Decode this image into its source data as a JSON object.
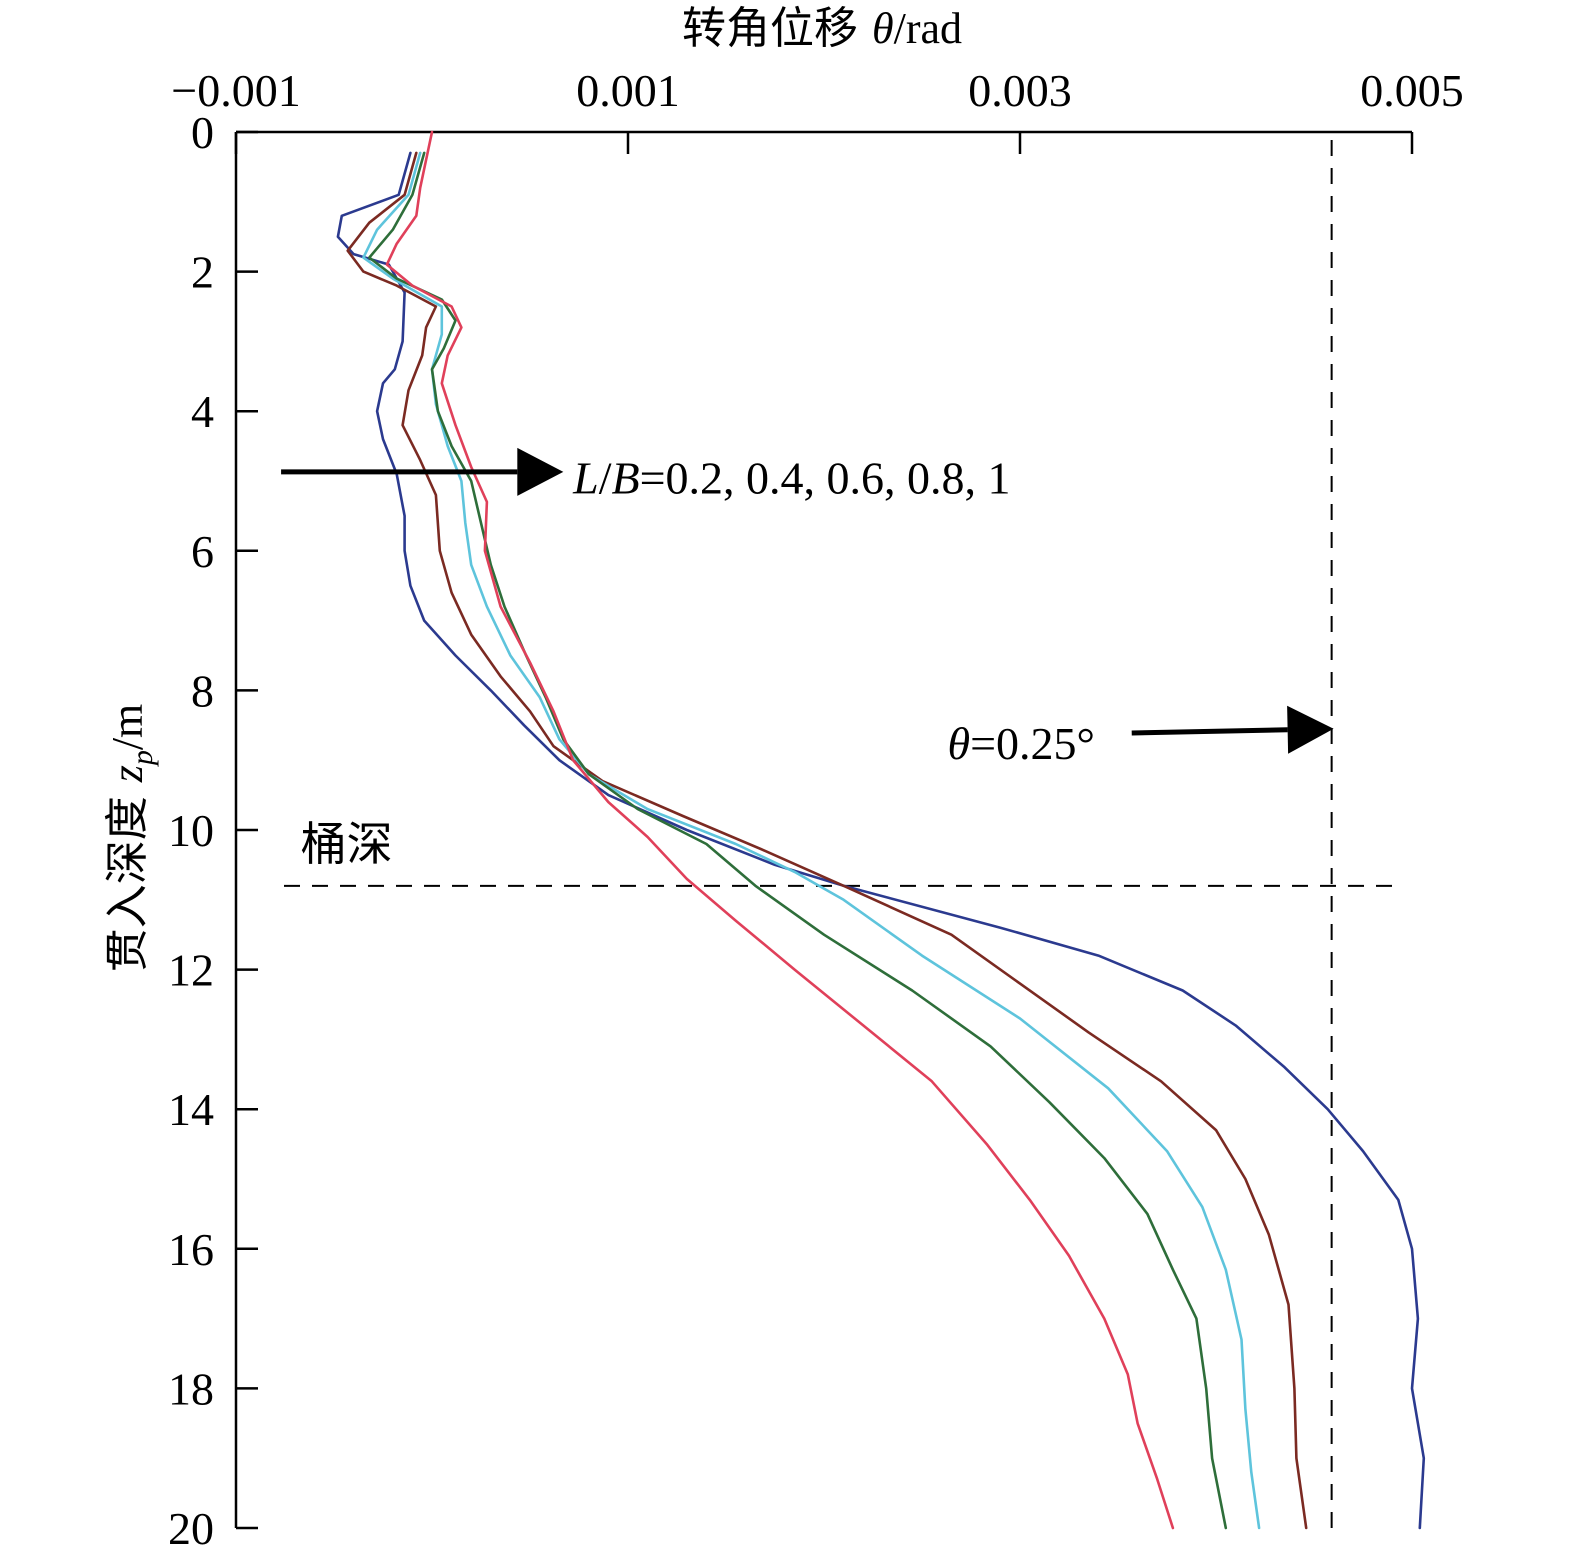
{
  "chart_data": {
    "type": "line",
    "xlabel_prefix": "转角位移 ",
    "xlabel_symbol": "θ",
    "xlabel_unit": "/rad",
    "ylabel_prefix": "贯入深度 ",
    "ylabel_symbol": "z",
    "ylabel_sub": "p",
    "ylabel_unit": "/m",
    "xlim": [
      -0.001,
      0.005
    ],
    "ylim": [
      0,
      20
    ],
    "y_inverted": true,
    "x_axis_position": "top",
    "x_ticks": [
      -0.001,
      0.001,
      0.003,
      0.005
    ],
    "x_tick_labels": [
      "−0.001",
      "0.001",
      "0.003",
      "0.005"
    ],
    "y_ticks": [
      0,
      2,
      4,
      6,
      8,
      10,
      12,
      14,
      16,
      18,
      20
    ],
    "y_tick_labels": [
      "0",
      "2",
      "4",
      "6",
      "8",
      "10",
      "12",
      "14",
      "16",
      "18",
      "20"
    ],
    "grid": false,
    "annotations": {
      "lb_italic_L": "L",
      "lb_slash": "/",
      "lb_italic_B": "B",
      "lb_values": "=0.2, 0.4, 0.6, 0.8, 1",
      "lb_arrow": {
        "from": [
          -0.00077,
          4.87
        ],
        "to": [
          0.00067,
          4.87
        ]
      },
      "lb_label_pos": [
        0.00072,
        4.95
      ],
      "theta_symbol": "θ",
      "theta_value": "=0.25°",
      "theta_arrow": {
        "from": [
          0.00357,
          8.61
        ],
        "to": [
          0.0046,
          8.55
        ]
      },
      "theta_label_pos": [
        0.00263,
        8.75
      ],
      "bucket_label": "桶深",
      "bucket_label_pos": [
        -0.00067,
        10.2
      ]
    },
    "reference_lines": [
      {
        "type": "horizontal",
        "y": 10.8,
        "style": "dashed"
      },
      {
        "type": "vertical",
        "x": 0.00459,
        "style": "dashed"
      }
    ],
    "series": [
      {
        "color": "#2b3a8f",
        "points": [
          [
            -0.00011,
            0.3
          ],
          [
            -0.00017,
            0.9
          ],
          [
            -0.00046,
            1.2
          ],
          [
            -0.00048,
            1.5
          ],
          [
            -0.0004,
            1.75
          ],
          [
            -0.00022,
            1.9
          ],
          [
            -0.00014,
            2.3
          ],
          [
            -0.00015,
            3.0
          ],
          [
            -0.00019,
            3.4
          ],
          [
            -0.00025,
            3.6
          ],
          [
            -0.00028,
            4.0
          ],
          [
            -0.00025,
            4.4
          ],
          [
            -0.00018,
            4.9
          ],
          [
            -0.00014,
            5.5
          ],
          [
            -0.00014,
            6.0
          ],
          [
            -0.00011,
            6.5
          ],
          [
            -4e-05,
            7.0
          ],
          [
            0.00012,
            7.5
          ],
          [
            0.0003,
            8.0
          ],
          [
            0.00047,
            8.5
          ],
          [
            0.00065,
            9.0
          ],
          [
            0.0009,
            9.5
          ],
          [
            0.0013,
            10.0
          ],
          [
            0.00175,
            10.5
          ],
          [
            0.0021,
            10.8
          ],
          [
            0.0029,
            11.4
          ],
          [
            0.0034,
            11.8
          ],
          [
            0.00383,
            12.3
          ],
          [
            0.0041,
            12.8
          ],
          [
            0.00435,
            13.4
          ],
          [
            0.00457,
            14.0
          ],
          [
            0.00475,
            14.6
          ],
          [
            0.00493,
            15.3
          ],
          [
            0.005,
            16.0
          ],
          [
            0.00503,
            17.0
          ],
          [
            0.005,
            18.0
          ],
          [
            0.00506,
            19.0
          ],
          [
            0.00504,
            20.0
          ]
        ]
      },
      {
        "color": "#7b2a22",
        "points": [
          [
            -8e-05,
            0.3
          ],
          [
            -0.00014,
            0.9
          ],
          [
            -0.00032,
            1.3
          ],
          [
            -0.00043,
            1.7
          ],
          [
            -0.00035,
            2.0
          ],
          [
            -0.00018,
            2.2
          ],
          [
            2e-05,
            2.5
          ],
          [
            -3e-05,
            2.8
          ],
          [
            -5e-05,
            3.2
          ],
          [
            -0.00012,
            3.7
          ],
          [
            -0.00015,
            4.2
          ],
          [
            -6e-05,
            4.7
          ],
          [
            2e-05,
            5.2
          ],
          [
            4e-05,
            6.0
          ],
          [
            0.0001,
            6.6
          ],
          [
            0.0002,
            7.2
          ],
          [
            0.00035,
            7.8
          ],
          [
            0.0005,
            8.3
          ],
          [
            0.00062,
            8.8
          ],
          [
            0.00087,
            9.3
          ],
          [
            0.00128,
            9.8
          ],
          [
            0.0017,
            10.3
          ],
          [
            0.0021,
            10.8
          ],
          [
            0.00265,
            11.5
          ],
          [
            0.003,
            12.2
          ],
          [
            0.00335,
            12.9
          ],
          [
            0.00372,
            13.6
          ],
          [
            0.004,
            14.3
          ],
          [
            0.00415,
            15.0
          ],
          [
            0.00427,
            15.8
          ],
          [
            0.00437,
            16.8
          ],
          [
            0.0044,
            18.0
          ],
          [
            0.00441,
            19.0
          ],
          [
            0.00446,
            20.0
          ]
        ]
      },
      {
        "color": "#5ec4dc",
        "points": [
          [
            -6e-05,
            0.3
          ],
          [
            -0.00012,
            0.9
          ],
          [
            -0.00028,
            1.4
          ],
          [
            -0.00035,
            1.8
          ],
          [
            -0.0002,
            2.1
          ],
          [
            5e-05,
            2.5
          ],
          [
            5e-05,
            2.9
          ],
          [
            0.0,
            3.4
          ],
          [
            2e-05,
            3.9
          ],
          [
            8e-05,
            4.5
          ],
          [
            0.00015,
            5.0
          ],
          [
            0.00017,
            5.6
          ],
          [
            0.0002,
            6.2
          ],
          [
            0.00028,
            6.8
          ],
          [
            0.0004,
            7.5
          ],
          [
            0.00055,
            8.1
          ],
          [
            0.00065,
            8.7
          ],
          [
            0.0008,
            9.2
          ],
          [
            0.0011,
            9.7
          ],
          [
            0.00155,
            10.2
          ],
          [
            0.00185,
            10.6
          ],
          [
            0.0021,
            11.0
          ],
          [
            0.0025,
            11.8
          ],
          [
            0.003,
            12.7
          ],
          [
            0.00345,
            13.7
          ],
          [
            0.00375,
            14.6
          ],
          [
            0.00393,
            15.4
          ],
          [
            0.00405,
            16.3
          ],
          [
            0.00413,
            17.3
          ],
          [
            0.00415,
            18.3
          ],
          [
            0.00418,
            19.2
          ],
          [
            0.00422,
            20.0
          ]
        ]
      },
      {
        "color": "#2e6e3a",
        "points": [
          [
            -4e-05,
            0.3
          ],
          [
            -0.0001,
            0.9
          ],
          [
            -0.0002,
            1.4
          ],
          [
            -0.00032,
            1.8
          ],
          [
            -0.00018,
            2.1
          ],
          [
            5e-05,
            2.4
          ],
          [
            0.00012,
            2.7
          ],
          [
            6e-05,
            3.1
          ],
          [
            0.0,
            3.4
          ],
          [
            3e-05,
            4.0
          ],
          [
            0.0001,
            4.5
          ],
          [
            0.0002,
            5.0
          ],
          [
            0.00025,
            5.6
          ],
          [
            0.0003,
            6.2
          ],
          [
            0.00037,
            6.8
          ],
          [
            0.00048,
            7.5
          ],
          [
            0.00058,
            8.1
          ],
          [
            0.00067,
            8.7
          ],
          [
            0.0008,
            9.2
          ],
          [
            0.00105,
            9.7
          ],
          [
            0.0014,
            10.2
          ],
          [
            0.00165,
            10.8
          ],
          [
            0.002,
            11.5
          ],
          [
            0.00245,
            12.3
          ],
          [
            0.00285,
            13.1
          ],
          [
            0.00315,
            13.9
          ],
          [
            0.00343,
            14.7
          ],
          [
            0.00365,
            15.5
          ],
          [
            0.00378,
            16.3
          ],
          [
            0.0039,
            17.0
          ],
          [
            0.00395,
            18.0
          ],
          [
            0.00398,
            19.0
          ],
          [
            0.00405,
            20.0
          ]
        ]
      },
      {
        "color": "#e0405a",
        "points": [
          [
            0.0,
            0.0
          ],
          [
            -3e-05,
            0.4
          ],
          [
            -6e-05,
            0.8
          ],
          [
            -8e-05,
            1.2
          ],
          [
            -0.00018,
            1.6
          ],
          [
            -0.00023,
            1.9
          ],
          [
            -0.0001,
            2.2
          ],
          [
            0.0001,
            2.5
          ],
          [
            0.00015,
            2.8
          ],
          [
            8e-05,
            3.2
          ],
          [
            5e-05,
            3.6
          ],
          [
            0.00012,
            4.2
          ],
          [
            0.0002,
            4.8
          ],
          [
            0.00028,
            5.3
          ],
          [
            0.00027,
            6.0
          ],
          [
            0.00035,
            6.8
          ],
          [
            0.0005,
            7.6
          ],
          [
            0.00062,
            8.3
          ],
          [
            0.00072,
            9.0
          ],
          [
            0.0009,
            9.6
          ],
          [
            0.0011,
            10.1
          ],
          [
            0.0013,
            10.7
          ],
          [
            0.00155,
            11.3
          ],
          [
            0.00185,
            12.0
          ],
          [
            0.0022,
            12.8
          ],
          [
            0.00255,
            13.6
          ],
          [
            0.00283,
            14.5
          ],
          [
            0.00305,
            15.3
          ],
          [
            0.00325,
            16.1
          ],
          [
            0.00343,
            17.0
          ],
          [
            0.00355,
            17.8
          ],
          [
            0.0036,
            18.5
          ],
          [
            0.0037,
            19.3
          ],
          [
            0.00378,
            20.0
          ]
        ]
      }
    ]
  }
}
